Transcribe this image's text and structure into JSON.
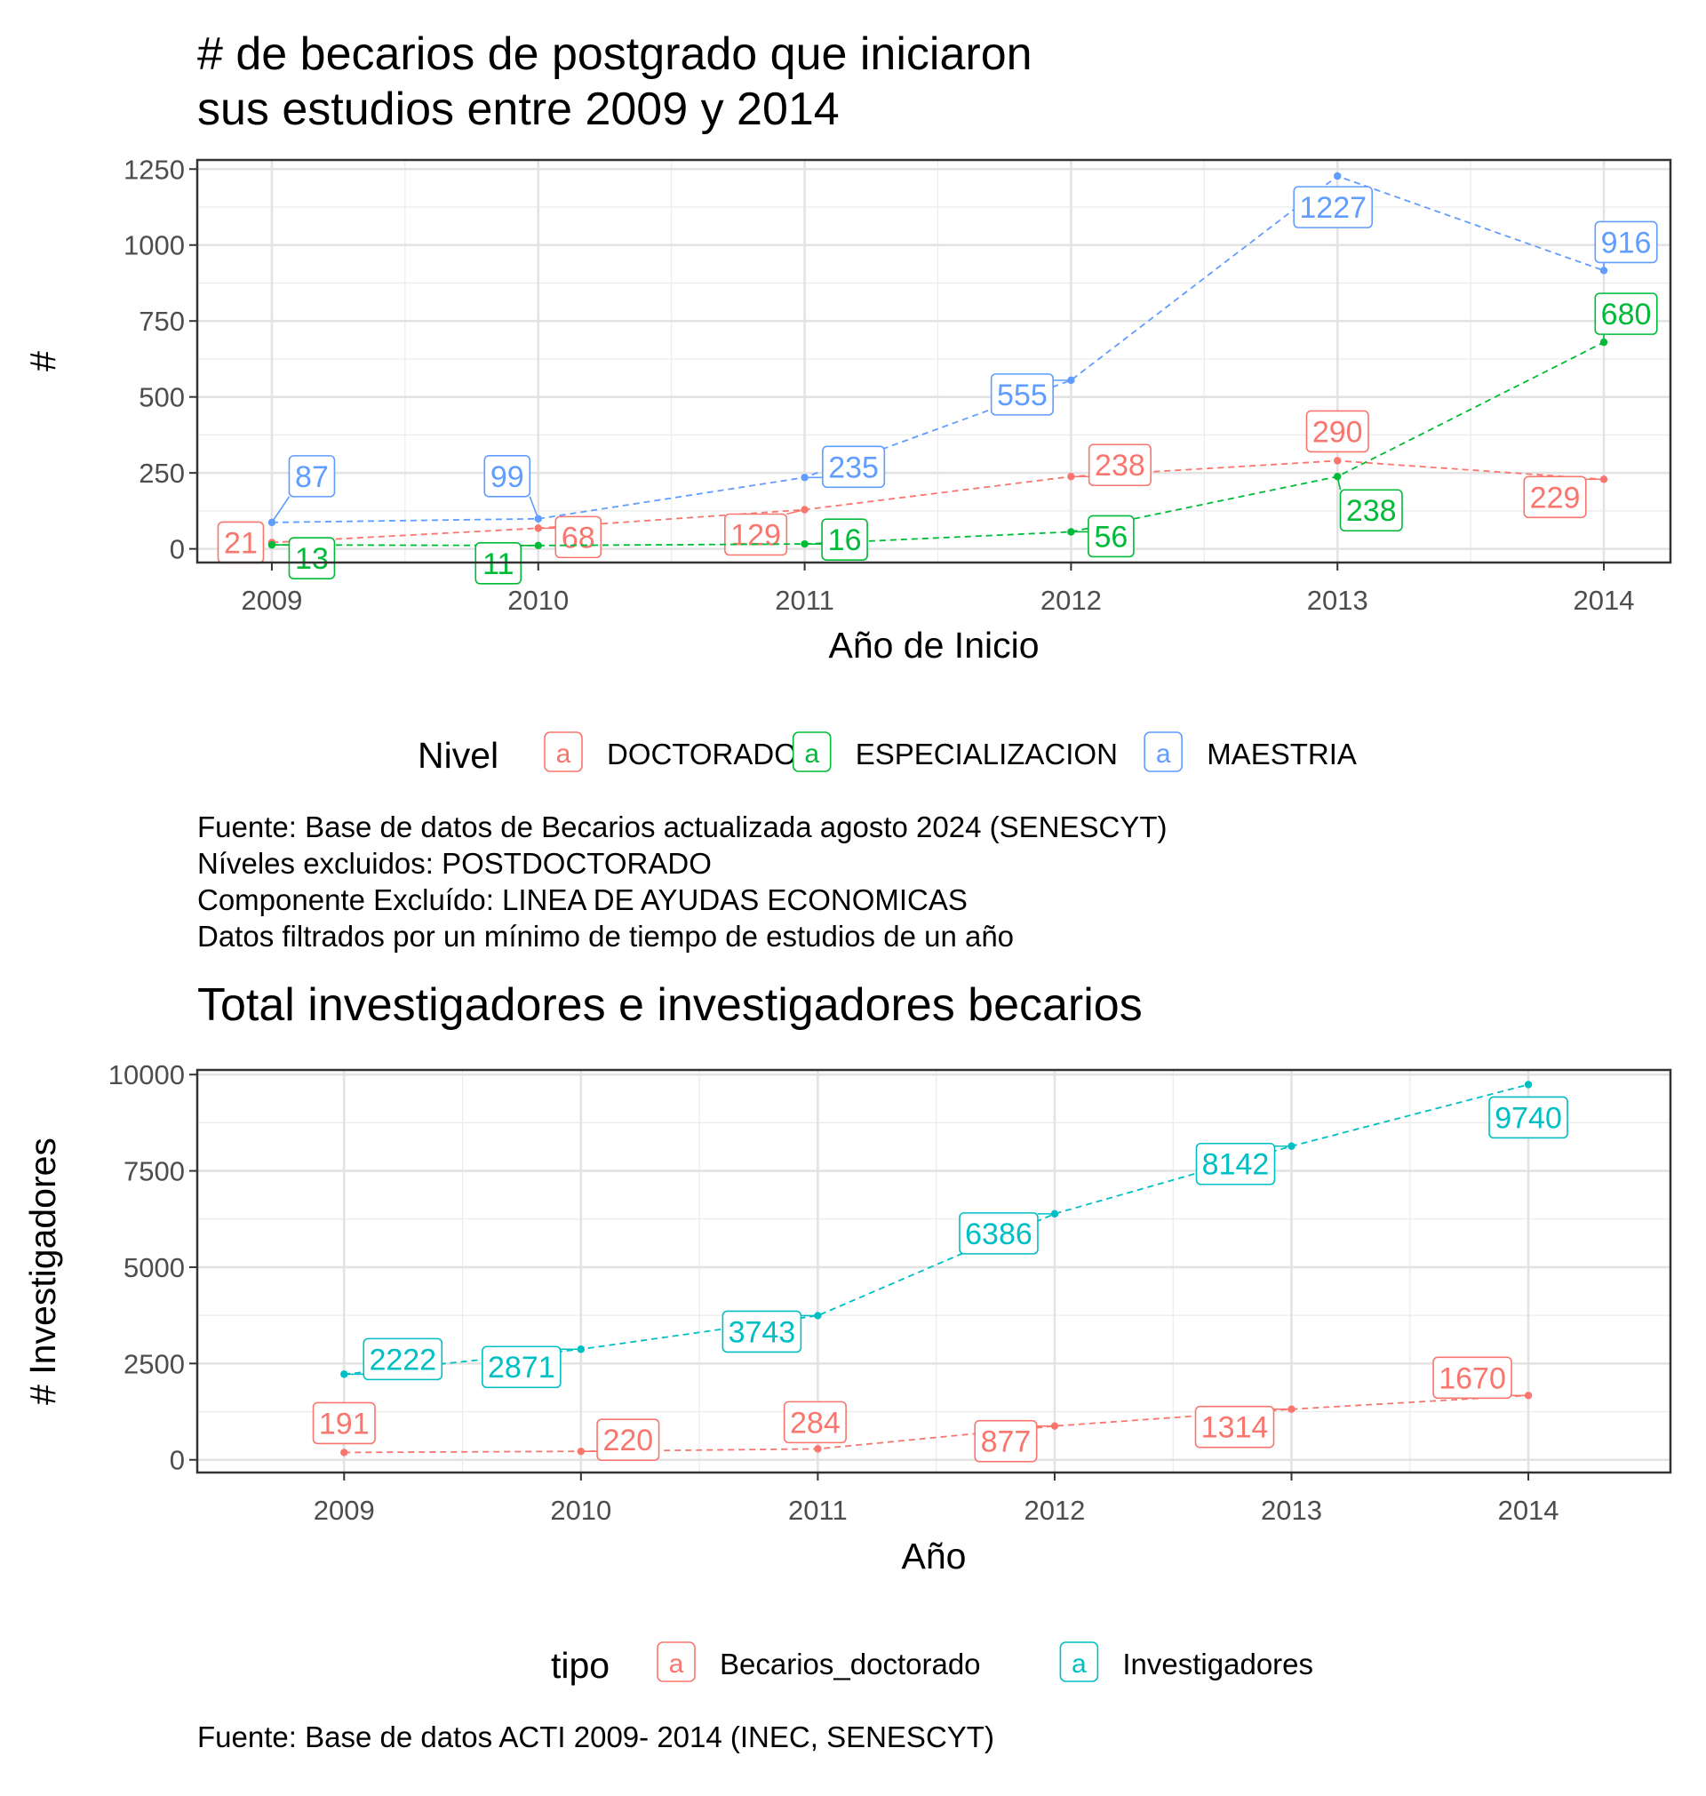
{
  "chart_data": [
    {
      "type": "line",
      "title": "# de becarios de postgrado que iniciaron\nsus estudios entre 2009 y 2014",
      "xlabel": "Año de Inicio",
      "ylabel": "#",
      "x": [
        2009,
        2010,
        2011,
        2012,
        2013,
        2014
      ],
      "xlim": [
        2008.72,
        2014.25
      ],
      "ylim": [
        -45,
        1280
      ],
      "yticks": [
        0,
        250,
        500,
        750,
        1000,
        1250
      ],
      "grid": true,
      "line_style": "dashed",
      "legend": {
        "title": "Nivel",
        "position": "bottom",
        "key_glyph": "a",
        "entries": [
          "DOCTORADO",
          "ESPECIALIZACION",
          "MAESTRIA"
        ]
      },
      "series": [
        {
          "name": "DOCTORADO",
          "color": "#F8766D",
          "values": [
            21,
            68,
            129,
            238,
            290,
            229
          ]
        },
        {
          "name": "ESPECIALIZACION",
          "color": "#00BA38",
          "values": [
            13,
            11,
            16,
            56,
            238,
            680
          ]
        },
        {
          "name": "MAESTRIA",
          "color": "#619CFF",
          "values": [
            87,
            99,
            235,
            555,
            1227,
            916
          ]
        }
      ],
      "caption": [
        "Fuente: Base de datos de Becarios actualizada agosto 2024 (SENESCYT)",
        "Níveles excluidos: POSTDOCTORADO",
        "Componente Excluído: LINEA DE AYUDAS ECONOMICAS",
        "Datos filtrados por un mínimo de tiempo de estudios de un año"
      ]
    },
    {
      "type": "line",
      "title": "Total investigadores e investigadores becarios",
      "xlabel": "Año",
      "ylabel": "# Investigadores",
      "x": [
        2009,
        2010,
        2011,
        2012,
        2013,
        2014
      ],
      "xlim": [
        2008.38,
        2014.6
      ],
      "ylim": [
        -330,
        10120
      ],
      "yticks": [
        0,
        2500,
        5000,
        7500,
        10000
      ],
      "grid": true,
      "line_style": "dashed",
      "legend": {
        "title": "tipo",
        "position": "bottom",
        "key_glyph": "a",
        "entries": [
          "Becarios_doctorado",
          "Investigadores"
        ]
      },
      "series": [
        {
          "name": "Becarios_doctorado",
          "color": "#F8766D",
          "values": [
            191,
            220,
            284,
            877,
            1314,
            1670
          ]
        },
        {
          "name": "Investigadores",
          "color": "#00BFC4",
          "values": [
            2222,
            2871,
            3743,
            6386,
            8142,
            9740
          ]
        }
      ],
      "caption": [
        "Fuente: Base de datos ACTI 2009- 2014 (INEC, SENESCYT)"
      ]
    }
  ]
}
